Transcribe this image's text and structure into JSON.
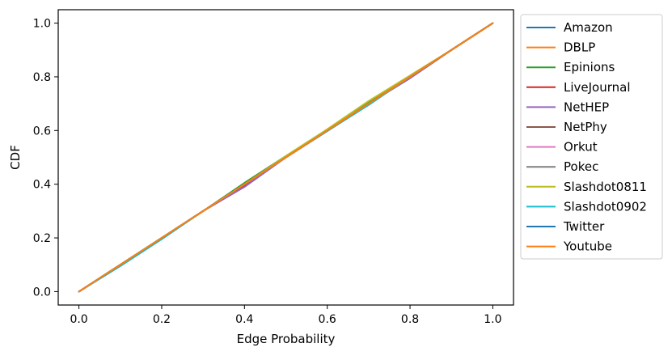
{
  "chart_data": {
    "type": "line",
    "title": "",
    "xlabel": "Edge Probability",
    "ylabel": "CDF",
    "xlim": [
      -0.05,
      1.05
    ],
    "ylim": [
      -0.05,
      1.05
    ],
    "xticks": [
      0.0,
      0.2,
      0.4,
      0.6,
      0.8,
      1.0
    ],
    "yticks": [
      0.0,
      0.2,
      0.4,
      0.6,
      0.8,
      1.0
    ],
    "xtick_labels": [
      "0.0",
      "0.2",
      "0.4",
      "0.6",
      "0.8",
      "1.0"
    ],
    "ytick_labels": [
      "0.0",
      "0.2",
      "0.4",
      "0.6",
      "0.8",
      "1.0"
    ],
    "grid": false,
    "legend_position": "outside-right",
    "series": [
      {
        "name": "Amazon",
        "color": "#1f77b4",
        "x": [
          0,
          0.1,
          0.2,
          0.3,
          0.4,
          0.5,
          0.6,
          0.7,
          0.8,
          0.9,
          1.0
        ],
        "y": [
          0,
          0.1,
          0.2,
          0.3,
          0.4,
          0.5,
          0.6,
          0.7,
          0.8,
          0.9,
          1.0
        ]
      },
      {
        "name": "DBLP",
        "color": "#ff7f0e",
        "x": [
          0,
          0.1,
          0.2,
          0.3,
          0.4,
          0.5,
          0.6,
          0.7,
          0.8,
          0.9,
          1.0
        ],
        "y": [
          0,
          0.1,
          0.2,
          0.3,
          0.4,
          0.5,
          0.6,
          0.7,
          0.8,
          0.9,
          1.0
        ]
      },
      {
        "name": "Epinions",
        "color": "#2ca02c",
        "x": [
          0,
          0.1,
          0.2,
          0.3,
          0.4,
          0.5,
          0.6,
          0.7,
          0.8,
          0.9,
          1.0
        ],
        "y": [
          0,
          0.1,
          0.2,
          0.3,
          0.405,
          0.505,
          0.603,
          0.703,
          0.8,
          0.9,
          1.0
        ]
      },
      {
        "name": "LiveJournal",
        "color": "#d62728",
        "x": [
          0,
          0.1,
          0.2,
          0.3,
          0.4,
          0.5,
          0.6,
          0.7,
          0.8,
          0.9,
          1.0
        ],
        "y": [
          0,
          0.1,
          0.2,
          0.3,
          0.395,
          0.5,
          0.598,
          0.7,
          0.795,
          0.9,
          1.0
        ]
      },
      {
        "name": "NetHEP",
        "color": "#9467bd",
        "x": [
          0,
          0.1,
          0.2,
          0.3,
          0.4,
          0.5,
          0.6,
          0.7,
          0.8,
          0.9,
          1.0
        ],
        "y": [
          0,
          0.1,
          0.2,
          0.3,
          0.39,
          0.5,
          0.6,
          0.7,
          0.795,
          0.9,
          1.0
        ]
      },
      {
        "name": "NetPhy",
        "color": "#8c564b",
        "x": [
          0,
          0.1,
          0.2,
          0.3,
          0.4,
          0.5,
          0.6,
          0.7,
          0.8,
          0.9,
          1.0
        ],
        "y": [
          0,
          0.1,
          0.2,
          0.3,
          0.4,
          0.5,
          0.6,
          0.7,
          0.8,
          0.9,
          1.0
        ]
      },
      {
        "name": "Orkut",
        "color": "#e377c2",
        "x": [
          0,
          0.1,
          0.2,
          0.3,
          0.4,
          0.5,
          0.6,
          0.7,
          0.8,
          0.9,
          1.0
        ],
        "y": [
          0,
          0.1,
          0.2,
          0.3,
          0.4,
          0.5,
          0.6,
          0.7,
          0.8,
          0.9,
          1.0
        ]
      },
      {
        "name": "Pokec",
        "color": "#7f7f7f",
        "x": [
          0,
          0.1,
          0.2,
          0.3,
          0.4,
          0.5,
          0.6,
          0.7,
          0.8,
          0.9,
          1.0
        ],
        "y": [
          0,
          0.1,
          0.2,
          0.3,
          0.4,
          0.5,
          0.6,
          0.7,
          0.8,
          0.9,
          1.0
        ]
      },
      {
        "name": "Slashdot0811",
        "color": "#bcbd22",
        "x": [
          0,
          0.1,
          0.2,
          0.3,
          0.4,
          0.5,
          0.6,
          0.7,
          0.8,
          0.9,
          1.0
        ],
        "y": [
          0,
          0.1,
          0.2,
          0.3,
          0.4,
          0.505,
          0.605,
          0.71,
          0.805,
          0.9,
          1.0
        ]
      },
      {
        "name": "Slashdot0902",
        "color": "#17becf",
        "x": [
          0,
          0.1,
          0.2,
          0.3,
          0.4,
          0.5,
          0.6,
          0.7,
          0.8,
          0.9,
          1.0
        ],
        "y": [
          0,
          0.095,
          0.195,
          0.3,
          0.4,
          0.5,
          0.598,
          0.695,
          0.8,
          0.9,
          1.0
        ]
      },
      {
        "name": "Twitter",
        "color": "#1f77b4",
        "x": [
          0,
          0.1,
          0.2,
          0.3,
          0.4,
          0.5,
          0.6,
          0.7,
          0.8,
          0.9,
          1.0
        ],
        "y": [
          0,
          0.1,
          0.2,
          0.3,
          0.4,
          0.5,
          0.6,
          0.7,
          0.8,
          0.9,
          1.0
        ]
      },
      {
        "name": "Youtube",
        "color": "#ff7f0e",
        "x": [
          0,
          0.1,
          0.2,
          0.3,
          0.4,
          0.5,
          0.6,
          0.7,
          0.8,
          0.9,
          1.0
        ],
        "y": [
          0,
          0.1,
          0.2,
          0.3,
          0.4,
          0.5,
          0.6,
          0.7,
          0.8,
          0.9,
          1.0
        ]
      }
    ]
  }
}
